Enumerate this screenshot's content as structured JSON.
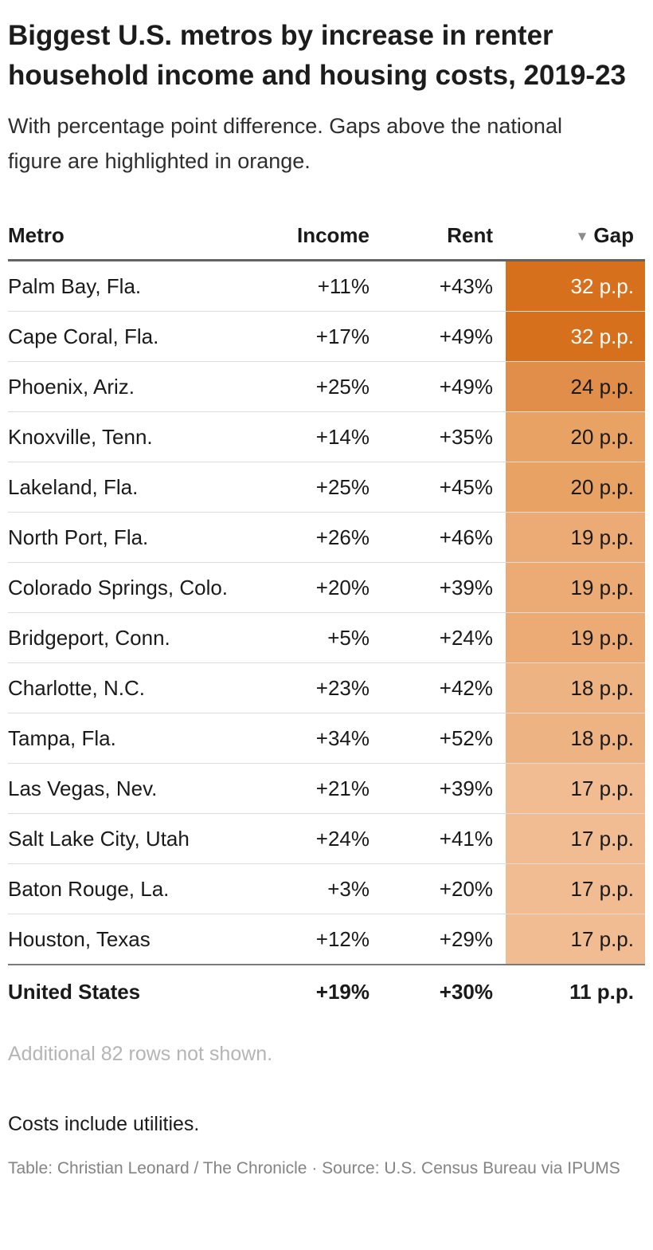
{
  "header": {
    "title": "Biggest U.S. metros by increase in renter household income and housing costs, 2019-23",
    "subtitle": "With percentage point difference. Gaps above the national figure are highlighted in orange."
  },
  "table": {
    "columns": {
      "metro": "Metro",
      "income": "Income",
      "rent": "Rent",
      "gap": "Gap",
      "sort_icon": "▼"
    },
    "rows": [
      {
        "metro": "Palm Bay, Fla.",
        "income": "+11%",
        "rent": "+43%",
        "gap": "32 p.p.",
        "gap_bg": "#d7701d",
        "gap_text": "#ffffff"
      },
      {
        "metro": "Cape Coral, Fla.",
        "income": "+17%",
        "rent": "+49%",
        "gap": "32 p.p.",
        "gap_bg": "#d7701d",
        "gap_text": "#ffffff"
      },
      {
        "metro": "Phoenix, Ariz.",
        "income": "+25%",
        "rent": "+49%",
        "gap": "24 p.p.",
        "gap_bg": "#e08e49",
        "gap_text": "#1a1a1a"
      },
      {
        "metro": "Knoxville, Tenn.",
        "income": "+14%",
        "rent": "+35%",
        "gap": "20 p.p.",
        "gap_bg": "#e8a263",
        "gap_text": "#1a1a1a"
      },
      {
        "metro": "Lakeland, Fla.",
        "income": "+25%",
        "rent": "+45%",
        "gap": "20 p.p.",
        "gap_bg": "#e8a263",
        "gap_text": "#1a1a1a"
      },
      {
        "metro": "North Port, Fla.",
        "income": "+26%",
        "rent": "+46%",
        "gap": "19 p.p.",
        "gap_bg": "#ecab74",
        "gap_text": "#1a1a1a"
      },
      {
        "metro": "Colorado Springs, Colo.",
        "income": "+20%",
        "rent": "+39%",
        "gap": "19 p.p.",
        "gap_bg": "#ecab74",
        "gap_text": "#1a1a1a"
      },
      {
        "metro": "Bridgeport, Conn.",
        "income": "+5%",
        "rent": "+24%",
        "gap": "19 p.p.",
        "gap_bg": "#ecab74",
        "gap_text": "#1a1a1a"
      },
      {
        "metro": "Charlotte, N.C.",
        "income": "+23%",
        "rent": "+42%",
        "gap": "18 p.p.",
        "gap_bg": "#eeb382",
        "gap_text": "#1a1a1a"
      },
      {
        "metro": "Tampa, Fla.",
        "income": "+34%",
        "rent": "+52%",
        "gap": "18 p.p.",
        "gap_bg": "#eeb382",
        "gap_text": "#1a1a1a"
      },
      {
        "metro": "Las Vegas, Nev.",
        "income": "+21%",
        "rent": "+39%",
        "gap": "17 p.p.",
        "gap_bg": "#f1bc92",
        "gap_text": "#1a1a1a"
      },
      {
        "metro": "Salt Lake City, Utah",
        "income": "+24%",
        "rent": "+41%",
        "gap": "17 p.p.",
        "gap_bg": "#f1bc92",
        "gap_text": "#1a1a1a"
      },
      {
        "metro": "Baton Rouge, La.",
        "income": "+3%",
        "rent": "+20%",
        "gap": "17 p.p.",
        "gap_bg": "#f1bc92",
        "gap_text": "#1a1a1a"
      },
      {
        "metro": "Houston, Texas",
        "income": "+12%",
        "rent": "+29%",
        "gap": "17 p.p.",
        "gap_bg": "#f1bc92",
        "gap_text": "#1a1a1a"
      }
    ],
    "total_row": {
      "metro": "United States",
      "income": "+19%",
      "rent": "+30%",
      "gap": "11 p.p."
    }
  },
  "footer": {
    "more_rows": "Additional 82 rows not shown.",
    "note": "Costs include utilities.",
    "attribution": "Table: Christian Leonard / The Chronicle · Source: U.S. Census Bureau via IPUMS"
  },
  "chart_data": {
    "type": "table",
    "title": "Biggest U.S. metros by increase in renter household income and housing costs, 2019-23",
    "subtitle": "With percentage point difference. Gaps above the national figure are highlighted in orange.",
    "columns": [
      "Metro",
      "Income",
      "Rent",
      "Gap"
    ],
    "sort": {
      "column": "Gap",
      "direction": "desc"
    },
    "highlight_rule": "gap above national figure highlighted in orange",
    "rows": [
      {
        "metro": "Palm Bay, Fla.",
        "income_pct": 11,
        "rent_pct": 43,
        "gap_pp": 32
      },
      {
        "metro": "Cape Coral, Fla.",
        "income_pct": 17,
        "rent_pct": 49,
        "gap_pp": 32
      },
      {
        "metro": "Phoenix, Ariz.",
        "income_pct": 25,
        "rent_pct": 49,
        "gap_pp": 24
      },
      {
        "metro": "Knoxville, Tenn.",
        "income_pct": 14,
        "rent_pct": 35,
        "gap_pp": 20
      },
      {
        "metro": "Lakeland, Fla.",
        "income_pct": 25,
        "rent_pct": 45,
        "gap_pp": 20
      },
      {
        "metro": "North Port, Fla.",
        "income_pct": 26,
        "rent_pct": 46,
        "gap_pp": 19
      },
      {
        "metro": "Colorado Springs, Colo.",
        "income_pct": 20,
        "rent_pct": 39,
        "gap_pp": 19
      },
      {
        "metro": "Bridgeport, Conn.",
        "income_pct": 5,
        "rent_pct": 24,
        "gap_pp": 19
      },
      {
        "metro": "Charlotte, N.C.",
        "income_pct": 23,
        "rent_pct": 42,
        "gap_pp": 18
      },
      {
        "metro": "Tampa, Fla.",
        "income_pct": 34,
        "rent_pct": 52,
        "gap_pp": 18
      },
      {
        "metro": "Las Vegas, Nev.",
        "income_pct": 21,
        "rent_pct": 39,
        "gap_pp": 17
      },
      {
        "metro": "Salt Lake City, Utah",
        "income_pct": 24,
        "rent_pct": 41,
        "gap_pp": 17
      },
      {
        "metro": "Baton Rouge, La.",
        "income_pct": 3,
        "rent_pct": 20,
        "gap_pp": 17
      },
      {
        "metro": "Houston, Texas",
        "income_pct": 12,
        "rent_pct": 29,
        "gap_pp": 17
      }
    ],
    "national": {
      "metro": "United States",
      "income_pct": 19,
      "rent_pct": 30,
      "gap_pp": 11
    },
    "rows_not_shown": 82
  }
}
